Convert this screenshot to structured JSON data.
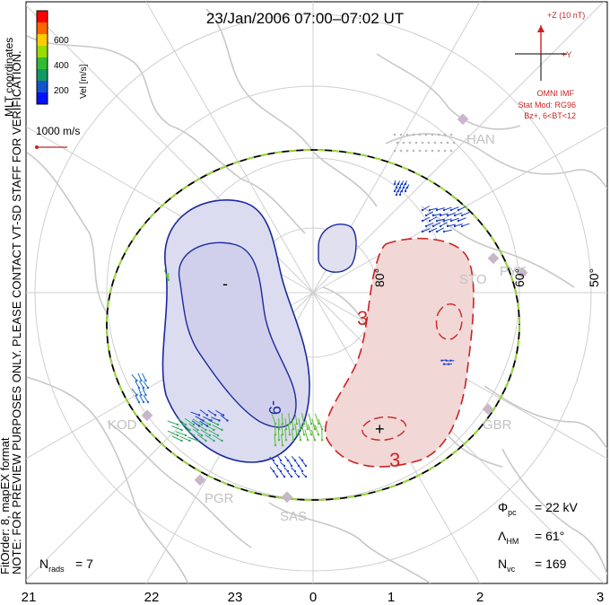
{
  "title": "23/Jan/2006 07:00–07:02 UT",
  "colorbar": {
    "label": "Vel [m/s]",
    "ticks": [
      "600",
      "400",
      "200"
    ],
    "colors": [
      "#ff0000",
      "#ff6600",
      "#ffcc00",
      "#99dd00",
      "#33bb33",
      "#119966",
      "#1155cc",
      "#0011ff"
    ]
  },
  "coord_label": "MLT coordinates",
  "scale_vector": "1000 m/s",
  "note_lines": [
    "NOTE: FOR PREVIEW PURPOSES ONLY. PLEASE CONTACT VT-SD STAFF FOR VERIFICATION.",
    "FitOrder: 8, mapEX format"
  ],
  "imf": {
    "z_label": "+Z (10 nT)",
    "y_label": "+Y",
    "source": "OMNI IMF",
    "model": "Stat Mod: RG96",
    "condition": "Bz+, 6<BT<12"
  },
  "latitude_labels": [
    "80°",
    "60°",
    "50°"
  ],
  "radar_stations": [
    "HAN",
    "STO",
    "PYK",
    "GBR",
    "SAS",
    "PGR",
    "KOD"
  ],
  "contour_labels": [
    "-",
    "-9",
    "3",
    "3",
    "+"
  ],
  "stats": {
    "potential": "= 22 kV",
    "lat_hm": "= 61°",
    "n_vc": "= 169",
    "n_rads": "= 7"
  },
  "mlt_ticks": [
    "21",
    "22",
    "23",
    "0",
    "1",
    "2",
    "3"
  ],
  "colors": {
    "negative_cell": "#1a2a9c",
    "positive_cell": "#cc2222",
    "coast": "#c8c8c8",
    "hm_boundary": "#99dd33"
  }
}
